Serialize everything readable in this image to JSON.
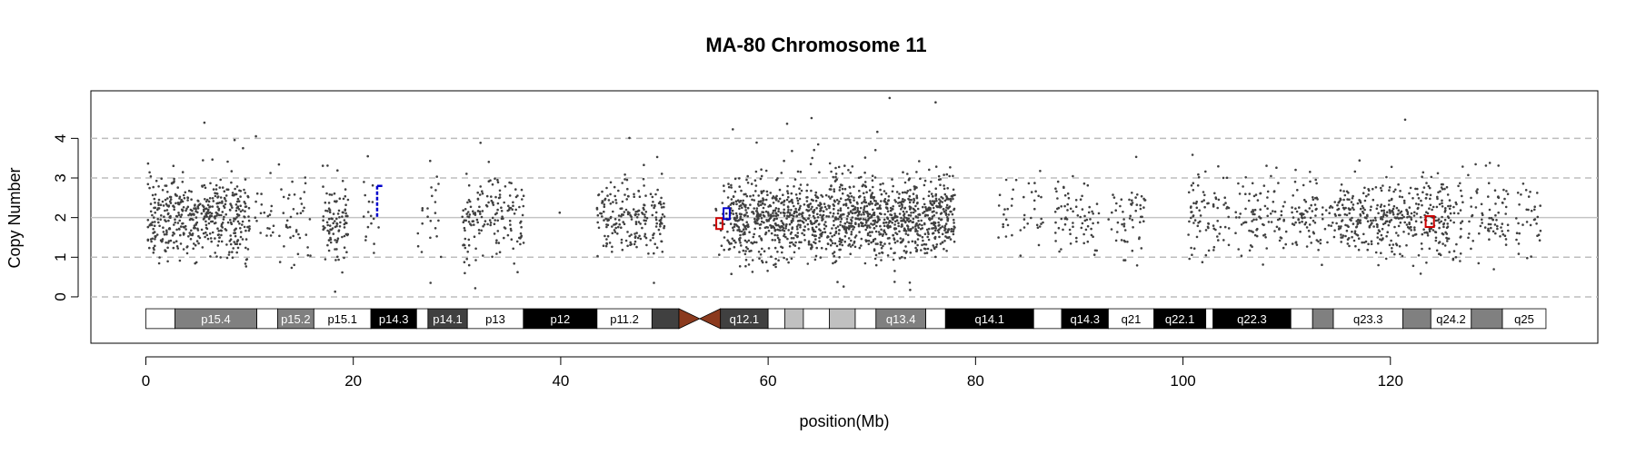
{
  "chart_data": {
    "type": "scatter",
    "title": "MA-80  Chromosome 11",
    "xlabel": "position(Mb)",
    "ylabel": "Copy Number",
    "xlim": [
      -5.3,
      140
    ],
    "ylim": [
      -1.17,
      5.2
    ],
    "x_ticks": [
      0,
      20,
      40,
      60,
      80,
      100,
      120
    ],
    "y_ticks": [
      0,
      1,
      2,
      3,
      4
    ],
    "reference_lines": {
      "solid": [
        2
      ],
      "dashed": [
        0,
        1,
        3,
        4
      ]
    },
    "point_color": "#404040",
    "data_clusters": [
      {
        "start": 0.2,
        "end": 10.0,
        "density": 110
      },
      {
        "start": 10.5,
        "end": 16.0,
        "density": 25
      },
      {
        "start": 17.0,
        "end": 19.5,
        "density": 90
      },
      {
        "start": 21.0,
        "end": 22.5,
        "density": 25
      },
      {
        "start": 26.2,
        "end": 28.5,
        "density": 22
      },
      {
        "start": 30.5,
        "end": 36.5,
        "density": 60
      },
      {
        "start": 39.5,
        "end": 40.0,
        "density": 3
      },
      {
        "start": 43.5,
        "end": 50.0,
        "density": 70
      },
      {
        "start": 54.8,
        "end": 56.0,
        "density": 30
      },
      {
        "start": 56.0,
        "end": 78.0,
        "density": 140
      },
      {
        "start": 82.0,
        "end": 86.5,
        "density": 20
      },
      {
        "start": 87.5,
        "end": 92.0,
        "density": 35
      },
      {
        "start": 92.5,
        "end": 96.5,
        "density": 30
      },
      {
        "start": 100.5,
        "end": 104.5,
        "density": 45
      },
      {
        "start": 105.0,
        "end": 110.0,
        "density": 40
      },
      {
        "start": 110.5,
        "end": 115.0,
        "density": 45
      },
      {
        "start": 115.0,
        "end": 121.0,
        "density": 80
      },
      {
        "start": 121.0,
        "end": 127.0,
        "density": 70
      },
      {
        "start": 127.5,
        "end": 131.5,
        "density": 40
      },
      {
        "start": 132.0,
        "end": 134.5,
        "density": 30
      }
    ],
    "segments": [
      {
        "start": 22.3,
        "end": 22.8,
        "y": 2.8,
        "y_end": 2.0,
        "color": "#0000cc"
      },
      {
        "start": 55.0,
        "end": 55.6,
        "y": 1.85,
        "y_end": 1.85,
        "color": "#cc0000"
      },
      {
        "start": 55.7,
        "end": 56.3,
        "y": 2.1,
        "y_end": 2.1,
        "color": "#0000cc"
      },
      {
        "start": 123.4,
        "end": 124.2,
        "y": 1.9,
        "y_end": 1.9,
        "color": "#cc0000"
      }
    ],
    "ideogram": {
      "y_center": -0.55,
      "height": 0.5,
      "centromere": {
        "p_end": 51.4,
        "center": 53.4,
        "q_start": 55.4,
        "color": "#8b3a1e"
      },
      "bands": [
        {
          "name": "",
          "start": 0.0,
          "end": 2.8,
          "color": "#ffffff"
        },
        {
          "name": "p15.4",
          "start": 2.8,
          "end": 10.7,
          "color": "#808080"
        },
        {
          "name": "",
          "start": 10.7,
          "end": 12.7,
          "color": "#ffffff"
        },
        {
          "name": "p15.2",
          "start": 12.7,
          "end": 16.2,
          "color": "#808080"
        },
        {
          "name": "p15.1",
          "start": 16.2,
          "end": 21.7,
          "color": "#ffffff"
        },
        {
          "name": "p14.3",
          "start": 21.7,
          "end": 26.1,
          "color": "#000000"
        },
        {
          "name": "",
          "start": 26.1,
          "end": 27.2,
          "color": "#ffffff"
        },
        {
          "name": "p14.1",
          "start": 27.2,
          "end": 31.0,
          "color": "#404040"
        },
        {
          "name": "p13",
          "start": 31.0,
          "end": 36.4,
          "color": "#ffffff"
        },
        {
          "name": "p12",
          "start": 36.4,
          "end": 43.5,
          "color": "#000000"
        },
        {
          "name": "p11.2",
          "start": 43.5,
          "end": 48.8,
          "color": "#ffffff"
        },
        {
          "name": "",
          "start": 48.8,
          "end": 51.4,
          "color": "#404040"
        },
        {
          "name": "q12.1",
          "start": 55.4,
          "end": 60.0,
          "color": "#404040"
        },
        {
          "name": "",
          "start": 60.0,
          "end": 61.6,
          "color": "#ffffff"
        },
        {
          "name": "",
          "start": 61.6,
          "end": 63.4,
          "color": "#c0c0c0"
        },
        {
          "name": "",
          "start": 63.4,
          "end": 65.9,
          "color": "#ffffff"
        },
        {
          "name": "",
          "start": 65.9,
          "end": 68.4,
          "color": "#c0c0c0"
        },
        {
          "name": "",
          "start": 68.4,
          "end": 70.4,
          "color": "#ffffff"
        },
        {
          "name": "q13.4",
          "start": 70.4,
          "end": 75.2,
          "color": "#808080"
        },
        {
          "name": "",
          "start": 75.2,
          "end": 77.1,
          "color": "#ffffff"
        },
        {
          "name": "q14.1",
          "start": 77.1,
          "end": 85.6,
          "color": "#000000"
        },
        {
          "name": "",
          "start": 85.6,
          "end": 88.3,
          "color": "#ffffff"
        },
        {
          "name": "q14.3",
          "start": 88.3,
          "end": 92.8,
          "color": "#000000"
        },
        {
          "name": "q21",
          "start": 92.8,
          "end": 97.2,
          "color": "#ffffff"
        },
        {
          "name": "q22.1",
          "start": 97.2,
          "end": 102.2,
          "color": "#000000"
        },
        {
          "name": "",
          "start": 102.2,
          "end": 102.9,
          "color": "#ffffff"
        },
        {
          "name": "q22.3",
          "start": 102.9,
          "end": 110.4,
          "color": "#000000"
        },
        {
          "name": "",
          "start": 110.4,
          "end": 112.5,
          "color": "#ffffff"
        },
        {
          "name": "",
          "start": 112.5,
          "end": 114.5,
          "color": "#808080"
        },
        {
          "name": "q23.3",
          "start": 114.5,
          "end": 121.2,
          "color": "#ffffff"
        },
        {
          "name": "",
          "start": 121.2,
          "end": 123.9,
          "color": "#808080"
        },
        {
          "name": "q24.2",
          "start": 123.9,
          "end": 127.8,
          "color": "#ffffff"
        },
        {
          "name": "",
          "start": 127.8,
          "end": 130.8,
          "color": "#808080"
        },
        {
          "name": "q25",
          "start": 130.8,
          "end": 135.0,
          "color": "#ffffff"
        }
      ]
    }
  }
}
